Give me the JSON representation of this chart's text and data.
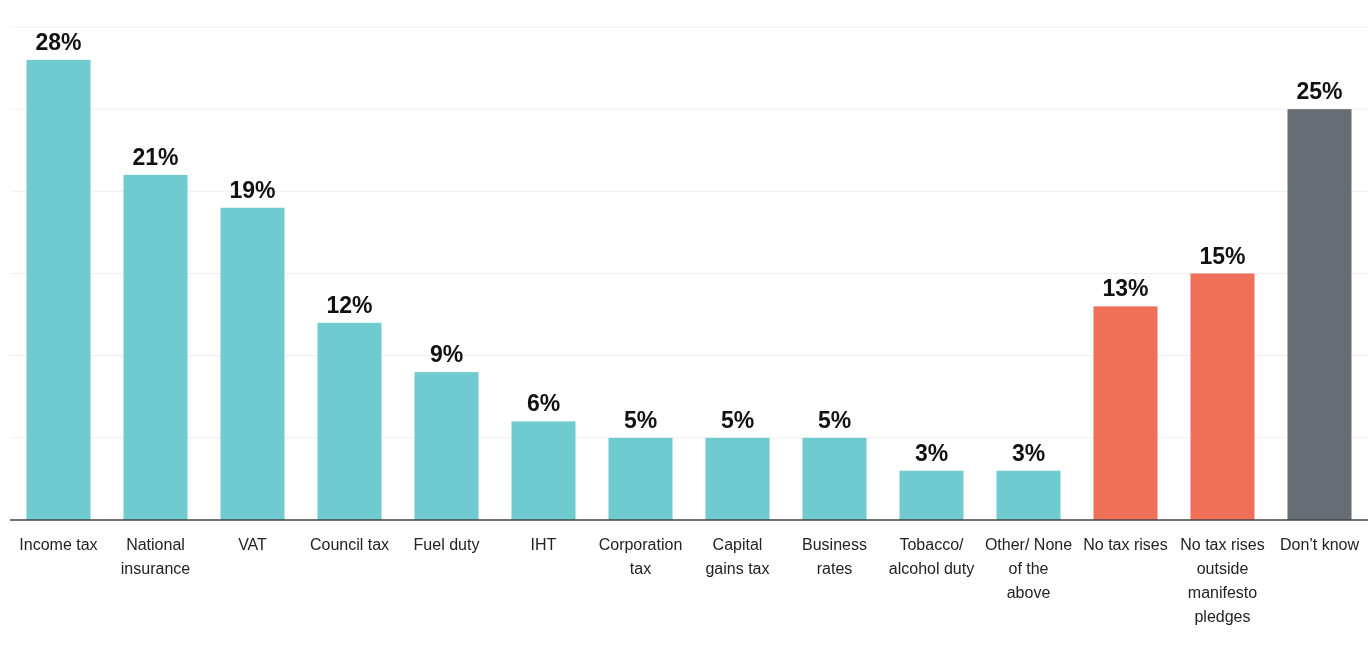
{
  "chart_data": {
    "type": "bar",
    "categories": [
      "Income tax",
      "National insurance",
      "VAT",
      "Council tax",
      "Fuel duty",
      "IHT",
      "Corporation tax",
      "Capital gains tax",
      "Business rates",
      "Tobacco/ alcohol duty",
      "Other/ None of the above",
      "No tax rises",
      "No tax rises outside manifesto pledges",
      "Don’t know"
    ],
    "values": [
      28,
      21,
      19,
      12,
      9,
      6,
      5,
      5,
      5,
      3,
      3,
      13,
      15,
      25
    ],
    "value_labels": [
      "28%",
      "21%",
      "19%",
      "12%",
      "9%",
      "6%",
      "5%",
      "5%",
      "5%",
      "3%",
      "3%",
      "13%",
      "15%",
      "25%"
    ],
    "colors": [
      "#70cbd0",
      "#70cbd0",
      "#70cbd0",
      "#70cbd0",
      "#70cbd0",
      "#70cbd0",
      "#70cbd0",
      "#70cbd0",
      "#70cbd0",
      "#70cbd0",
      "#70cbd0",
      "#ef7058",
      "#ef7058",
      "#686c74"
    ],
    "ylim": [
      0,
      30
    ],
    "yticks": [
      {
        "value": 0,
        "label": null
      },
      {
        "value": 5,
        "label": null
      },
      {
        "value": 10,
        "label": null
      },
      {
        "value": 15,
        "label": null
      },
      {
        "value": 20,
        "label": null
      },
      {
        "value": 25,
        "label": null
      },
      {
        "value": 30,
        "label": null
      }
    ],
    "grid": "y",
    "tick_labels": "x"
  }
}
